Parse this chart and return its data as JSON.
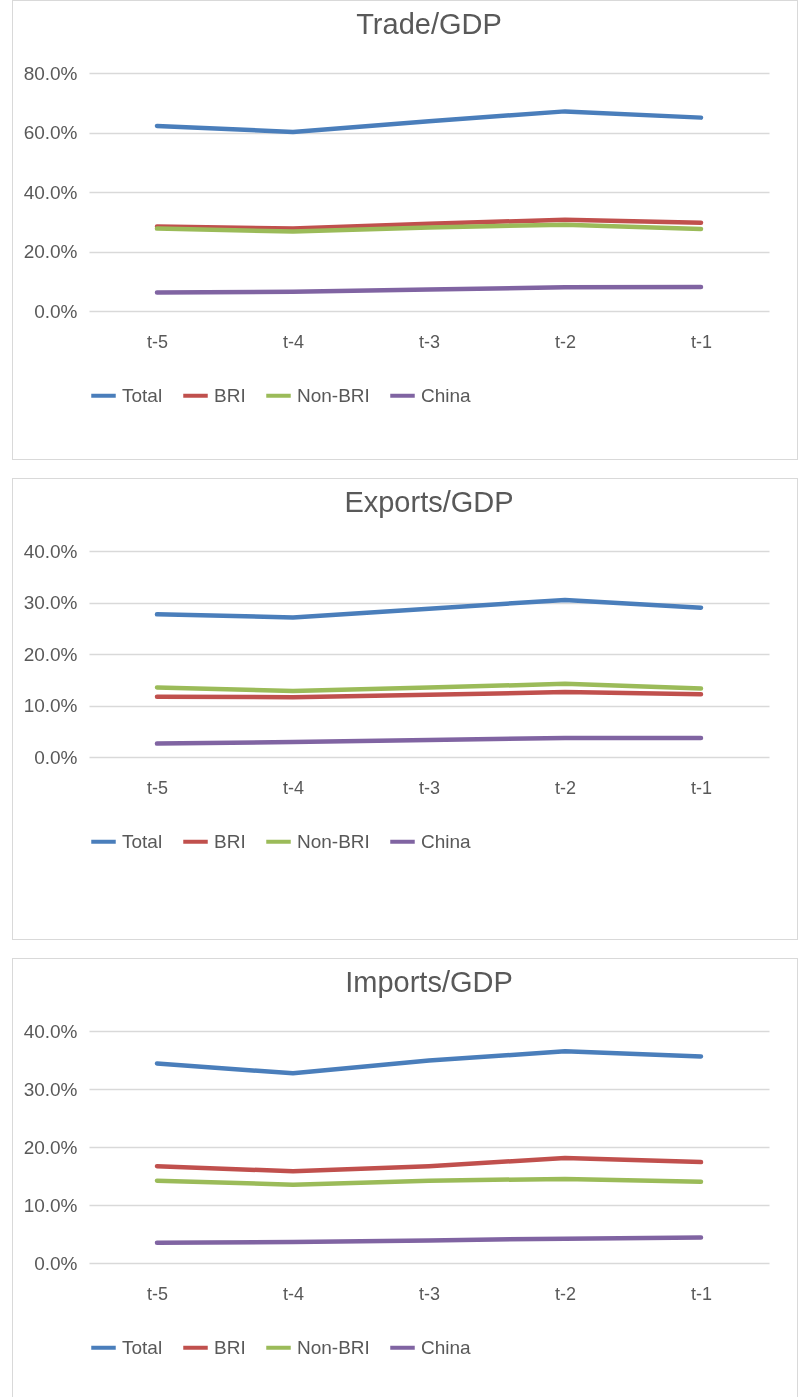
{
  "chart_data": [
    {
      "type": "line",
      "title": "Trade/GDP",
      "categories": [
        "t-5",
        "t-4",
        "t-3",
        "t-2",
        "t-1"
      ],
      "ylim": [
        0,
        80
      ],
      "yticks": [
        {
          "value": 0,
          "label": "0.0%"
        },
        {
          "value": 20,
          "label": "20.0%"
        },
        {
          "value": 40,
          "label": "40.0%"
        },
        {
          "value": 60,
          "label": "60.0%"
        },
        {
          "value": 80,
          "label": "80.0%"
        }
      ],
      "grid": "y",
      "legend": "bottom",
      "series": [
        {
          "name": "Total",
          "color": "#4a7ebb",
          "values": [
            62.2,
            60.2,
            63.8,
            67.1,
            65.0
          ]
        },
        {
          "name": "BRI",
          "color": "#c0504d",
          "values": [
            28.4,
            27.7,
            29.3,
            30.7,
            29.7
          ]
        },
        {
          "name": "Non-BRI",
          "color": "#9bbb59",
          "values": [
            27.7,
            26.7,
            28.1,
            29.0,
            27.6
          ]
        },
        {
          "name": "China",
          "color": "#8064a2",
          "values": [
            6.2,
            6.5,
            7.2,
            8.0,
            8.1
          ]
        }
      ]
    },
    {
      "type": "line",
      "title": "Exports/GDP",
      "categories": [
        "t-5",
        "t-4",
        "t-3",
        "t-2",
        "t-1"
      ],
      "ylim": [
        0,
        40
      ],
      "yticks": [
        {
          "value": 0,
          "label": "0.0%"
        },
        {
          "value": 10,
          "label": "10.0%"
        },
        {
          "value": 20,
          "label": "20.0%"
        },
        {
          "value": 30,
          "label": "30.0%"
        },
        {
          "value": 40,
          "label": "40.0%"
        }
      ],
      "grid": "y",
      "legend": "bottom",
      "series": [
        {
          "name": "Total",
          "color": "#4a7ebb",
          "values": [
            27.7,
            27.1,
            28.8,
            30.5,
            29.0
          ]
        },
        {
          "name": "BRI",
          "color": "#c0504d",
          "values": [
            11.7,
            11.6,
            12.1,
            12.6,
            12.2
          ]
        },
        {
          "name": "Non-BRI",
          "color": "#9bbb59",
          "values": [
            13.5,
            12.8,
            13.5,
            14.2,
            13.3
          ]
        },
        {
          "name": "China",
          "color": "#8064a2",
          "values": [
            2.6,
            2.9,
            3.3,
            3.7,
            3.7
          ]
        }
      ]
    },
    {
      "type": "line",
      "title": "Imports/GDP",
      "categories": [
        "t-5",
        "t-4",
        "t-3",
        "t-2",
        "t-1"
      ],
      "ylim": [
        0,
        40
      ],
      "yticks": [
        {
          "value": 0,
          "label": "0.0%"
        },
        {
          "value": 10,
          "label": "10.0%"
        },
        {
          "value": 20,
          "label": "20.0%"
        },
        {
          "value": 30,
          "label": "30.0%"
        },
        {
          "value": 40,
          "label": "40.0%"
        }
      ],
      "grid": "y",
      "legend": "bottom",
      "series": [
        {
          "name": "Total",
          "color": "#4a7ebb",
          "values": [
            34.4,
            32.7,
            34.9,
            36.5,
            35.6
          ]
        },
        {
          "name": "BRI",
          "color": "#c0504d",
          "values": [
            16.7,
            15.8,
            16.7,
            18.1,
            17.4
          ]
        },
        {
          "name": "Non-BRI",
          "color": "#9bbb59",
          "values": [
            14.2,
            13.5,
            14.2,
            14.5,
            14.0
          ]
        },
        {
          "name": "China",
          "color": "#8064a2",
          "values": [
            3.5,
            3.6,
            3.9,
            4.2,
            4.4
          ]
        }
      ]
    }
  ]
}
